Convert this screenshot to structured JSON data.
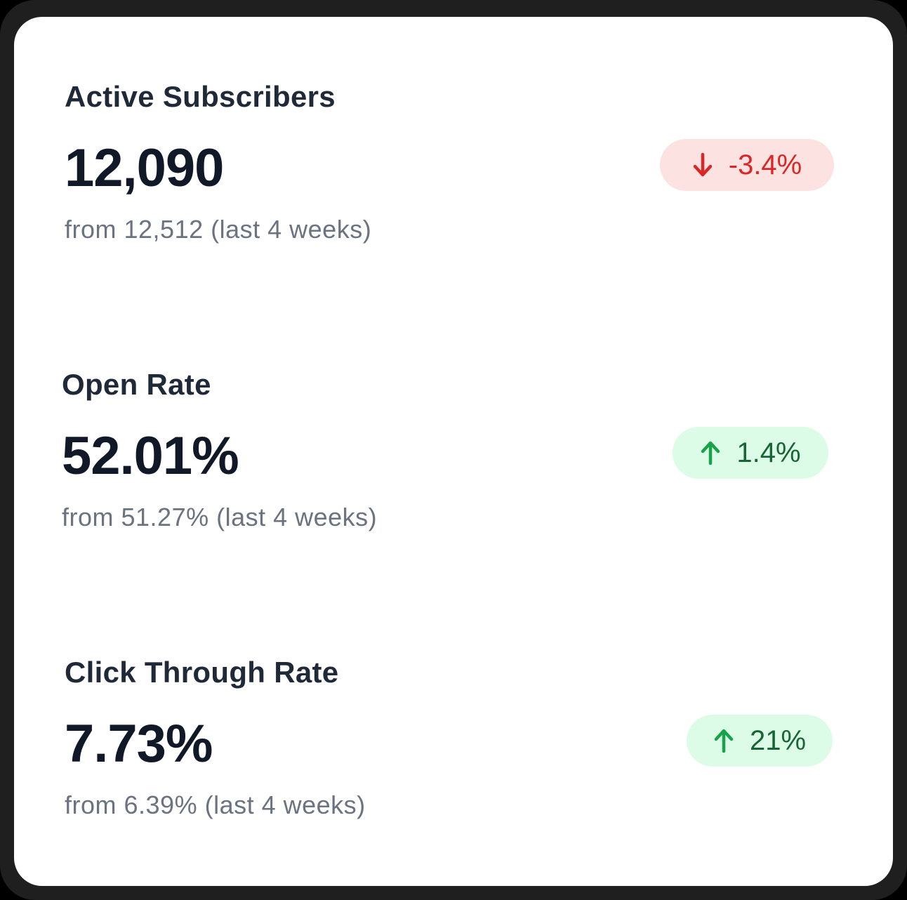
{
  "metrics": [
    {
      "label": "Active Subscribers",
      "value": "12,090",
      "comparison": "from 12,512 (last 4 weeks)",
      "change": "-3.4%",
      "trend": "down",
      "trend_icon": "arrow-down-icon",
      "color": "#dc2626"
    },
    {
      "label": "Open Rate",
      "value": "52.01%",
      "comparison": "from 51.27% (last 4 weeks)",
      "change": "1.4%",
      "trend": "up",
      "trend_icon": "arrow-up-icon",
      "color": "#16a34a"
    },
    {
      "label": "Click Through Rate",
      "value": "7.73%",
      "comparison": "from 6.39% (last 4 weeks)",
      "change": "21%",
      "trend": "up",
      "trend_icon": "arrow-up-icon",
      "color": "#16a34a"
    }
  ]
}
